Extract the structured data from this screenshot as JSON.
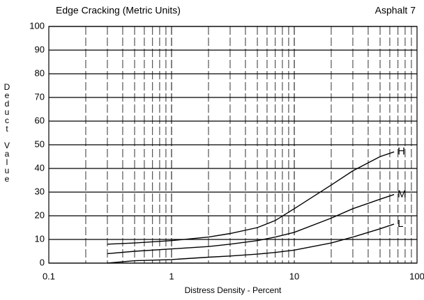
{
  "chart_data": {
    "type": "line",
    "title": "Edge Cracking (Metric Units)",
    "annotation": "Asphalt 7",
    "x_label": "Distress Density - Percent",
    "y_label": "Deduct Value",
    "x": [
      0.3,
      0.5,
      1,
      2,
      3,
      5,
      7,
      10,
      20,
      30,
      50,
      65
    ],
    "series": [
      {
        "name": "H",
        "color": "#000000",
        "values": [
          8,
          8.5,
          9.5,
          11,
          12.5,
          15,
          18,
          23,
          33,
          39,
          45,
          47
        ]
      },
      {
        "name": "M",
        "color": "#000000",
        "values": [
          4,
          5,
          6,
          7,
          8,
          9.5,
          11,
          13,
          19,
          23,
          27,
          29
        ]
      },
      {
        "name": "L",
        "color": "#000000",
        "values": [
          0,
          1,
          1.5,
          2.5,
          3,
          3.8,
          4.5,
          5.5,
          8.5,
          11,
          14.5,
          16.5
        ]
      }
    ],
    "xlim": [
      0.1,
      100
    ],
    "xticks": [
      0.1,
      1,
      10,
      100
    ],
    "log_x": true,
    "ylim": [
      0,
      100
    ],
    "yticks": [
      0,
      10,
      20,
      30,
      40,
      50,
      60,
      70,
      80,
      90,
      100
    ],
    "grid": true
  }
}
